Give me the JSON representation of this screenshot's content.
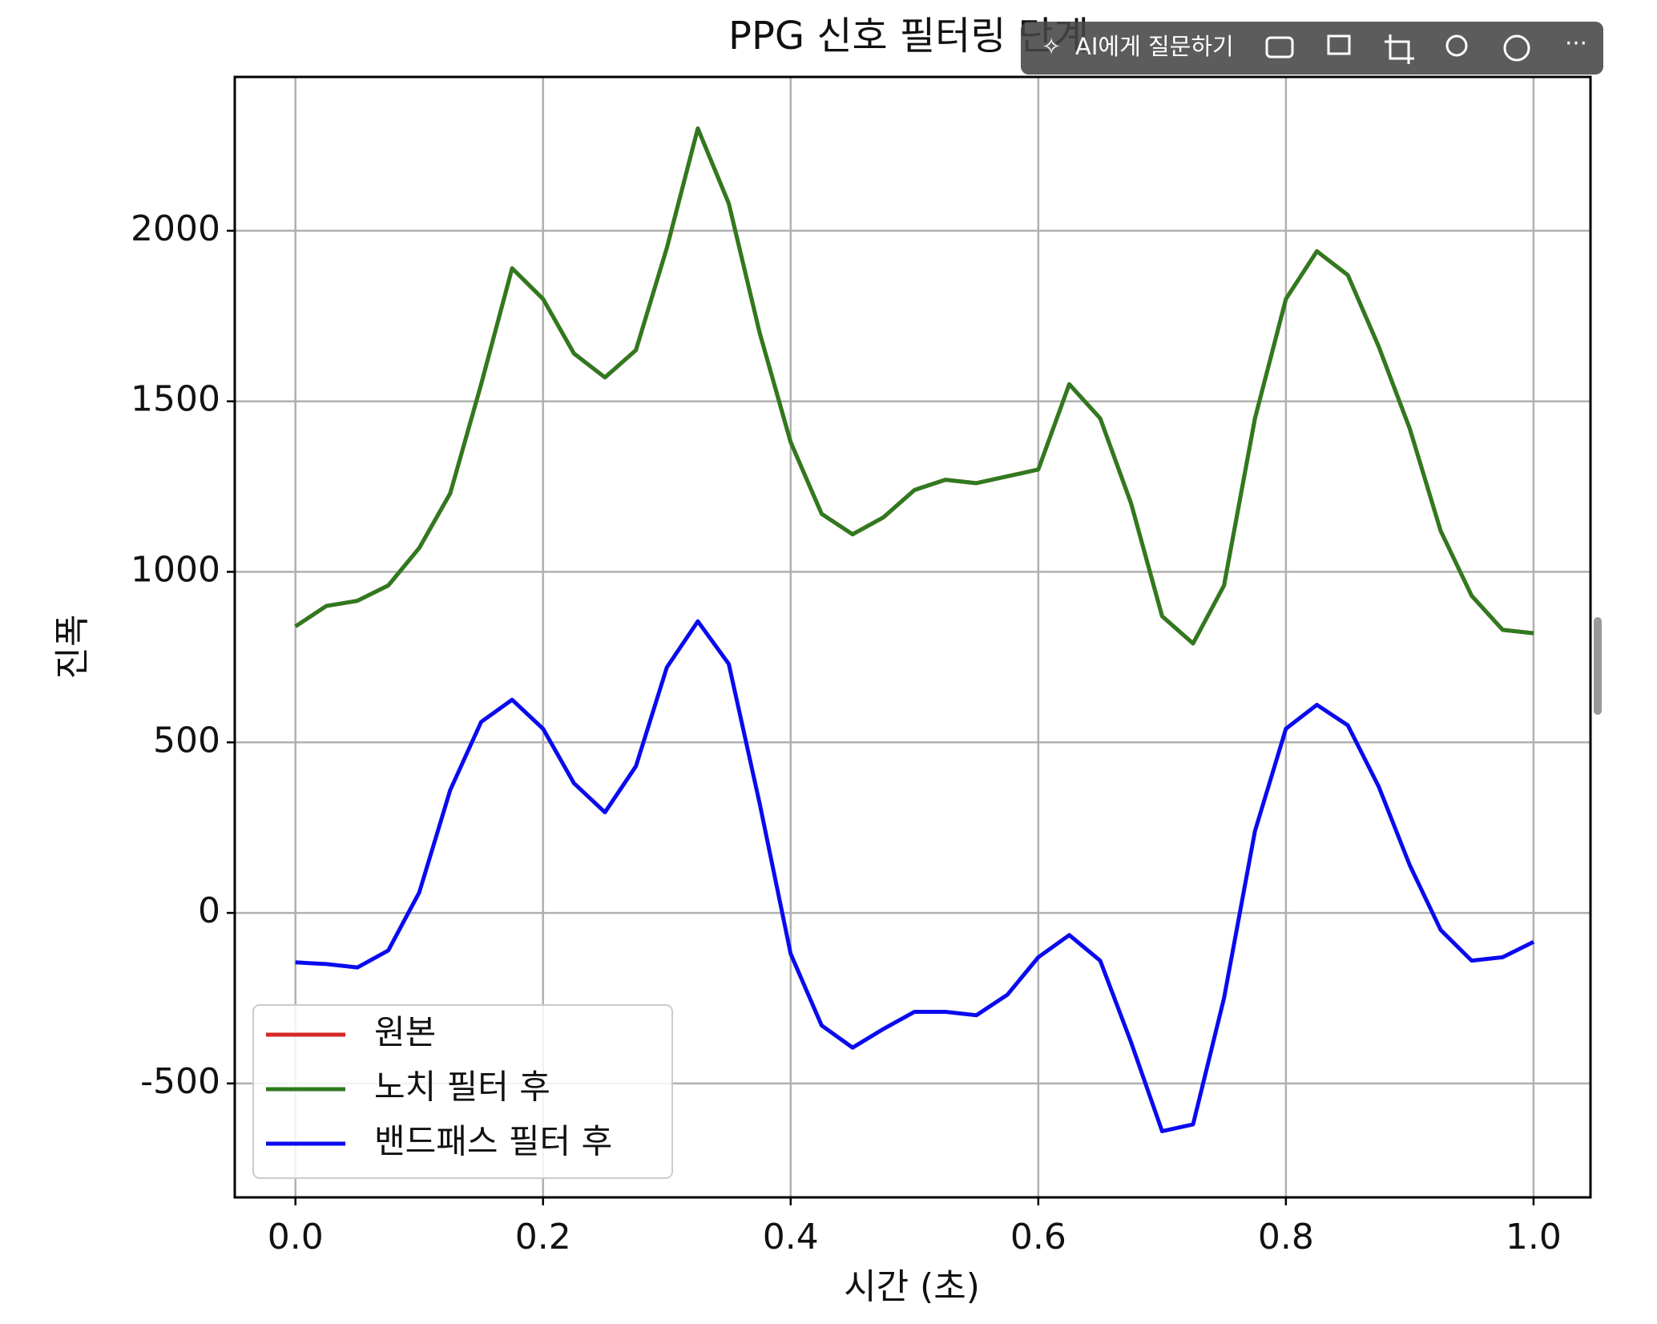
{
  "chart_data": {
    "type": "line",
    "title": "PPG 신호 필터링 단계",
    "xlabel": "시간 (초)",
    "ylabel": "진폭",
    "x": [
      0,
      0.025,
      0.05,
      0.075,
      0.1,
      0.125,
      0.15,
      0.175,
      0.2,
      0.225,
      0.25,
      0.275,
      0.3,
      0.325,
      0.35,
      0.375,
      0.4,
      0.425,
      0.45,
      0.475,
      0.5,
      0.525,
      0.55,
      0.575,
      0.6,
      0.625,
      0.65,
      0.675,
      0.7,
      0.725,
      0.75,
      0.775,
      0.8,
      0.825,
      0.85,
      0.875,
      0.9,
      0.925,
      0.95,
      0.975,
      1.0
    ],
    "series": [
      {
        "name": "원본",
        "color": "#d62728",
        "values": [
          840,
          900,
          915,
          960,
          1070,
          1230,
          1550,
          1890,
          1800,
          1640,
          1570,
          1650,
          1950,
          2300,
          2080,
          1700,
          1380,
          1170,
          1110,
          1160,
          1240,
          1270,
          1260,
          1280,
          1300,
          1550,
          1450,
          1200,
          870,
          790,
          960,
          1450,
          1800,
          1940,
          1870,
          1660,
          1420,
          1120,
          930,
          830,
          820
        ]
      },
      {
        "name": "노치 필터 후",
        "color": "#2f7a1f",
        "values": [
          840,
          900,
          915,
          960,
          1070,
          1230,
          1550,
          1890,
          1800,
          1640,
          1570,
          1650,
          1950,
          2300,
          2080,
          1700,
          1380,
          1170,
          1110,
          1160,
          1240,
          1270,
          1260,
          1280,
          1300,
          1550,
          1450,
          1200,
          870,
          790,
          960,
          1450,
          1800,
          1940,
          1870,
          1660,
          1420,
          1120,
          930,
          830,
          820
        ]
      },
      {
        "name": "밴드패스 필터 후",
        "color": "#0a0aee",
        "values": [
          -145,
          -150,
          -160,
          -110,
          60,
          360,
          560,
          625,
          540,
          380,
          295,
          430,
          720,
          855,
          730,
          320,
          -120,
          -330,
          -395,
          -340,
          -290,
          -290,
          -300,
          -240,
          -130,
          -65,
          -140,
          -380,
          -640,
          -620,
          -250,
          240,
          540,
          610,
          550,
          370,
          140,
          -50,
          -140,
          -130,
          -85
        ]
      }
    ],
    "xlim": [
      -0.049,
      1.046
    ],
    "ylim": [
      -834,
      2451
    ],
    "xticks": [
      {
        "value": 0,
        "label": "0.0"
      },
      0.2,
      0.4,
      0.6,
      0.8,
      {
        "value": 1,
        "label": "1.0"
      }
    ],
    "yticks": [
      -500,
      0,
      500,
      1000,
      1500,
      2000
    ],
    "grid": true,
    "legend": "lower left"
  },
  "toolbar": {
    "ask_ai": "AI에게 질문하기"
  }
}
